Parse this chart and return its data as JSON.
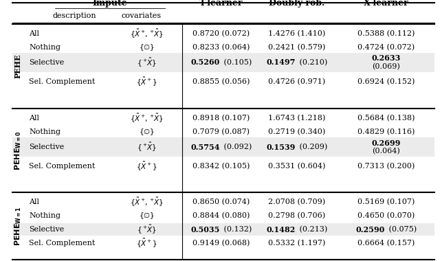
{
  "header_row1": [
    "Impute",
    "T-learner",
    "Doubly rob.",
    "X-learner"
  ],
  "header_row2": [
    "description",
    "covariates"
  ],
  "row_labels": [
    "All",
    "Nothing",
    "Selective",
    "Sel. Complement"
  ],
  "group_labels": [
    "PEHE",
    "PEHE$_{\\mathbf{W=0}}$",
    "PEHE$_{\\mathbf{W=1}}$"
  ],
  "cov_all": "$\\{\\tilde{X}^+\\!,{}^+\\!\\tilde{X}\\}$",
  "cov_nothing": "$\\{\\emptyset\\}$",
  "cov_selective": "$\\{{}^+\\!\\tilde{X}\\}$",
  "cov_sel_comp": "$\\{\\tilde{X}^+\\}$",
  "t_learner": [
    [
      "0.8720 (0.072)",
      "0.8233 (0.064)",
      "0.5260 (0.105)",
      "0.8855 (0.056)"
    ],
    [
      "0.8918 (0.107)",
      "0.7079 (0.087)",
      "0.5754 (0.092)",
      "0.8342 (0.105)"
    ],
    [
      "0.8650 (0.074)",
      "0.8844 (0.080)",
      "0.5035 (0.132)",
      "0.9149 (0.068)"
    ]
  ],
  "doubly_rob": [
    [
      "1.4276 (1.410)",
      "0.2421 (0.579)",
      "0.1497 (0.210)",
      "0.4726 (0.971)"
    ],
    [
      "1.6743 (1.218)",
      "0.2719 (0.340)",
      "0.1539 (0.209)",
      "0.3531 (0.604)"
    ],
    [
      "2.0708 (0.709)",
      "0.2798 (0.706)",
      "0.1482 (0.213)",
      "0.5332 (1.197)"
    ]
  ],
  "x_learner": [
    [
      "0.5388 (0.112)",
      "0.4724 (0.072)",
      "0.2633|(0.069)",
      "0.6924 (0.152)"
    ],
    [
      "0.5684 (0.138)",
      "0.4829 (0.116)",
      "0.2699|(0.064)",
      "0.7313 (0.200)"
    ],
    [
      "0.5169 (0.107)",
      "0.4650 (0.070)",
      "0.2590 (0.075)",
      "0.6664 (0.157)"
    ]
  ],
  "bold_t": [
    "0.5260",
    "0.5754",
    "0.5035"
  ],
  "bold_dr": [
    "0.1497",
    "0.1539",
    "0.1482"
  ],
  "bold_xl": [
    "0.2633",
    "0.2699",
    "0.2590"
  ],
  "gray_color": "#ebebeb",
  "cell_fontsize": 8.0,
  "header_fontsize": 9.0
}
